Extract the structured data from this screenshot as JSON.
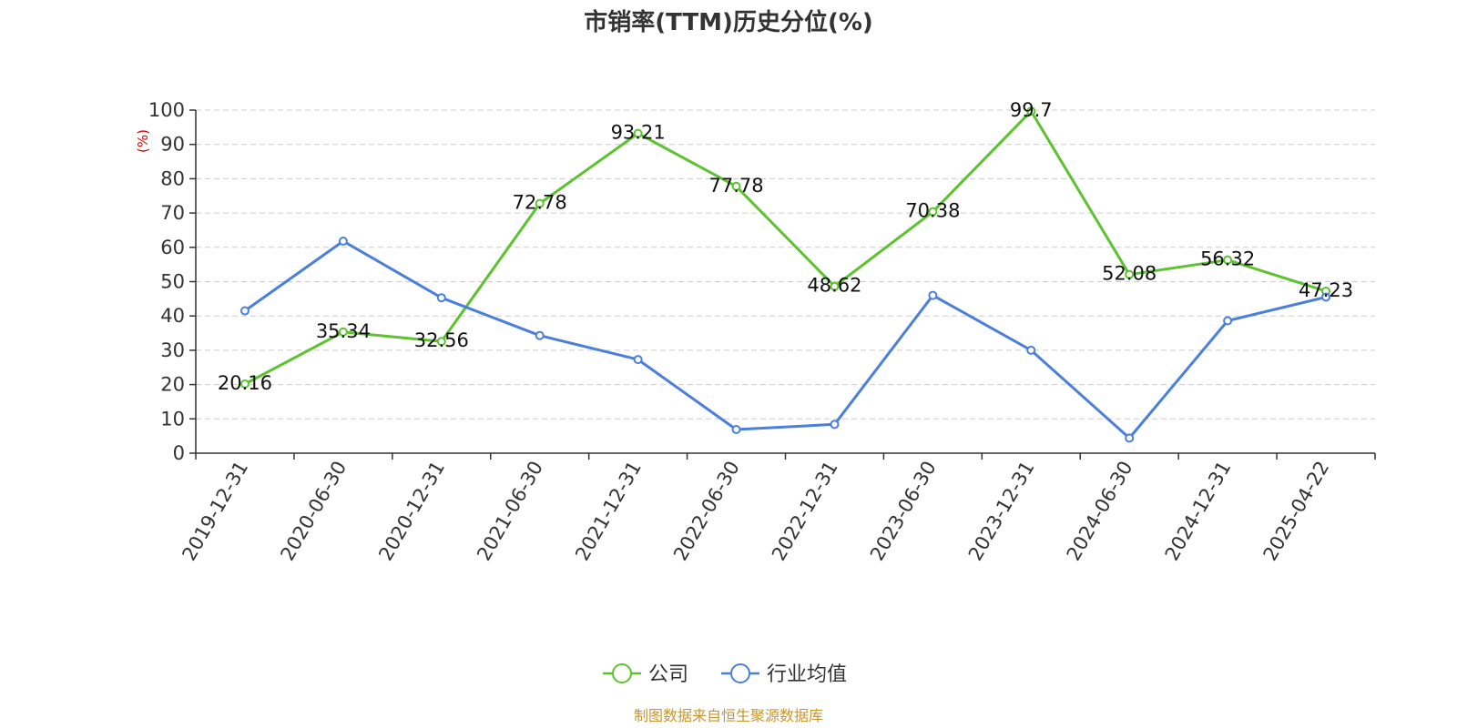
{
  "chart_data": {
    "type": "line",
    "title": "市销率(TTM)历史分位(%)",
    "ylabel": "(%)",
    "ylim": [
      0,
      100
    ],
    "yticks": [
      0,
      10,
      20,
      30,
      40,
      50,
      60,
      70,
      80,
      90,
      100
    ],
    "grid": true,
    "legend_position": "bottom-center",
    "categories": [
      "2019-12-31",
      "2020-06-30",
      "2020-12-31",
      "2021-06-30",
      "2021-12-31",
      "2022-06-30",
      "2022-12-31",
      "2023-06-30",
      "2023-12-31",
      "2024-06-30",
      "2024-12-31",
      "2025-04-22"
    ],
    "series": [
      {
        "name": "公司",
        "color": "#5cc22e",
        "values": [
          20.16,
          35.34,
          32.56,
          72.78,
          93.21,
          77.78,
          48.62,
          70.38,
          99.7,
          52.08,
          56.32,
          47.23
        ],
        "data_labels": [
          "20.16",
          "35.34",
          "32.56",
          "72.78",
          "93.21",
          "77.78",
          "48.62",
          "70.38",
          "99.7",
          "52.08",
          "56.32",
          "47.23"
        ]
      },
      {
        "name": "行业均值",
        "color": "#4a7fdc",
        "values": [
          41.5,
          61.8,
          45.3,
          34.3,
          27.3,
          6.9,
          8.4,
          46.0,
          30.0,
          4.4,
          38.6,
          45.5
        ]
      }
    ],
    "source": "制图数据来自恒生聚源数据库",
    "source_color": "#c8962e",
    "ylabel_color": "#dd0000"
  }
}
